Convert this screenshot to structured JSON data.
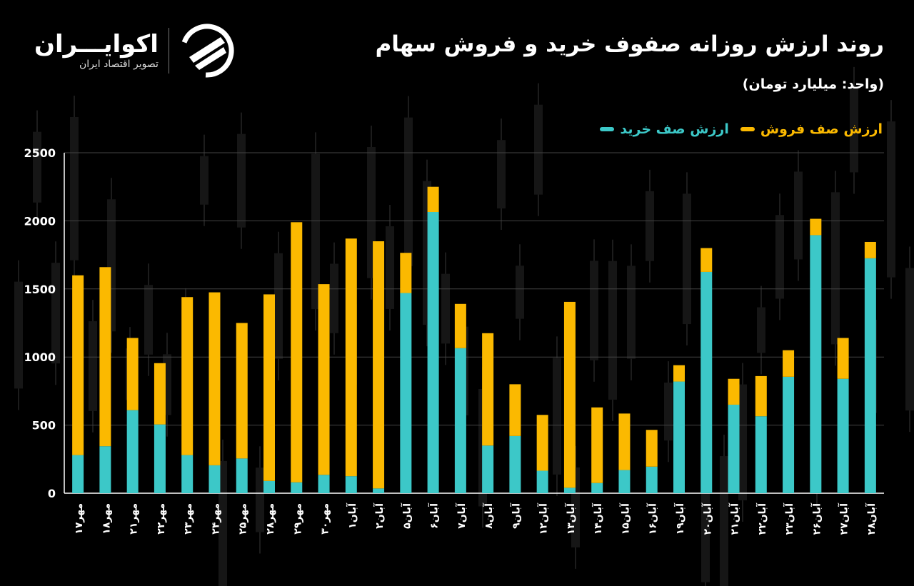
{
  "header": {
    "title": "روند ارزش روزانه صفوف خرید و فروش سهام",
    "unit": "(واحد: میلیارد تومان)"
  },
  "logo": {
    "name": "اکوایـــران",
    "tagline": "تصویر اقتصاد ایران",
    "icon": "ecoiran-logo-icon"
  },
  "colors": {
    "buy": "#3cc8c8",
    "sell": "#fbb900",
    "background": "#000000",
    "grid": "#444444"
  },
  "chart_data": {
    "type": "bar",
    "stacked": true,
    "title": "روند ارزش روزانه صفوف خرید و فروش سهام",
    "ylabel": "(واحد: میلیارد تومان)",
    "xlabel": "",
    "ylim": [
      0,
      2500
    ],
    "yticks": [
      0,
      500,
      1000,
      1500,
      2000,
      2500
    ],
    "ytick_labels": [
      "0",
      "500",
      "1000",
      "1500",
      "2000",
      "2500"
    ],
    "grid": true,
    "legend_position": "top-right",
    "categories": [
      "۱۷مهر",
      "۱۸مهر",
      "۲۱مهر",
      "۲۲مهر",
      "۲۳مهر",
      "۲۴مهر",
      "۲۵مهر",
      "۲۸مهر",
      "۲۹مهر",
      "۳۰مهر",
      "۱آبان",
      "۲آبان",
      "۵آبان",
      "۶آبان",
      "۷آبان",
      "۸آبان",
      "۹آبان",
      "۱۲آبان",
      "۱۳آبان",
      "۱۴آبان",
      "۱۵آبان",
      "۱۶آبان",
      "۱۹آبان",
      "۲۰آبان",
      "۲۱آبان",
      "۲۲آبان",
      "۲۳آبان",
      "۲۶آبان",
      "۲۷آبان",
      "۲۸آبان"
    ],
    "series": [
      {
        "name": "ارزش صف خرید",
        "color": "#3cc8c8",
        "values": [
          280,
          345,
          610,
          505,
          280,
          205,
          255,
          90,
          80,
          135,
          125,
          35,
          1470,
          2065,
          1065,
          350,
          420,
          165,
          40,
          75,
          170,
          195,
          820,
          1625,
          650,
          565,
          855,
          1895,
          840,
          1725
        ]
      },
      {
        "name": "ارزش صف فروش",
        "color": "#fbb900",
        "values": [
          1320,
          1315,
          530,
          450,
          1160,
          1270,
          995,
          1370,
          1910,
          1400,
          1745,
          1815,
          295,
          185,
          325,
          825,
          380,
          410,
          1365,
          555,
          415,
          270,
          120,
          175,
          190,
          295,
          195,
          120,
          300,
          120
        ]
      }
    ]
  }
}
